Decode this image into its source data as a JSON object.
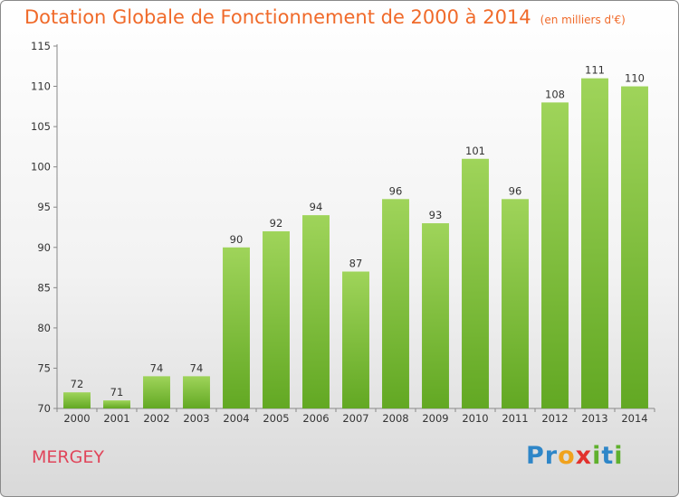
{
  "chart_data": {
    "type": "bar",
    "title": "Dotation Globale de Fonctionnement de 2000 à 2014",
    "subtitle": "(en milliers d'€)",
    "categories": [
      "2000",
      "2001",
      "2002",
      "2003",
      "2004",
      "2005",
      "2006",
      "2007",
      "2008",
      "2009",
      "2010",
      "2011",
      "2012",
      "2013",
      "2014"
    ],
    "values": [
      72,
      71,
      74,
      74,
      90,
      92,
      94,
      87,
      96,
      93,
      101,
      96,
      108,
      111,
      110
    ],
    "value_labels": [
      "72",
      "71",
      "74",
      "74",
      "90",
      "92",
      "94",
      "87",
      "96",
      "93",
      "101",
      "96",
      "108",
      "111",
      "110"
    ],
    "ylim": [
      70,
      115
    ],
    "yticks": [
      70,
      75,
      80,
      85,
      90,
      95,
      100,
      105,
      110,
      115
    ],
    "ytick_labels": [
      "70",
      "75",
      "80",
      "85",
      "90",
      "95",
      "100",
      "105",
      "110",
      "115"
    ],
    "grid": false,
    "bar_color": "#7dc242",
    "bar_color_dark": "#5ea322"
  },
  "entity_name": "MERGEY",
  "logo": {
    "p1": "Pr",
    "p2": "o",
    "p3": "x",
    "p4": "i",
    "p5": "t",
    "p6": "i"
  }
}
